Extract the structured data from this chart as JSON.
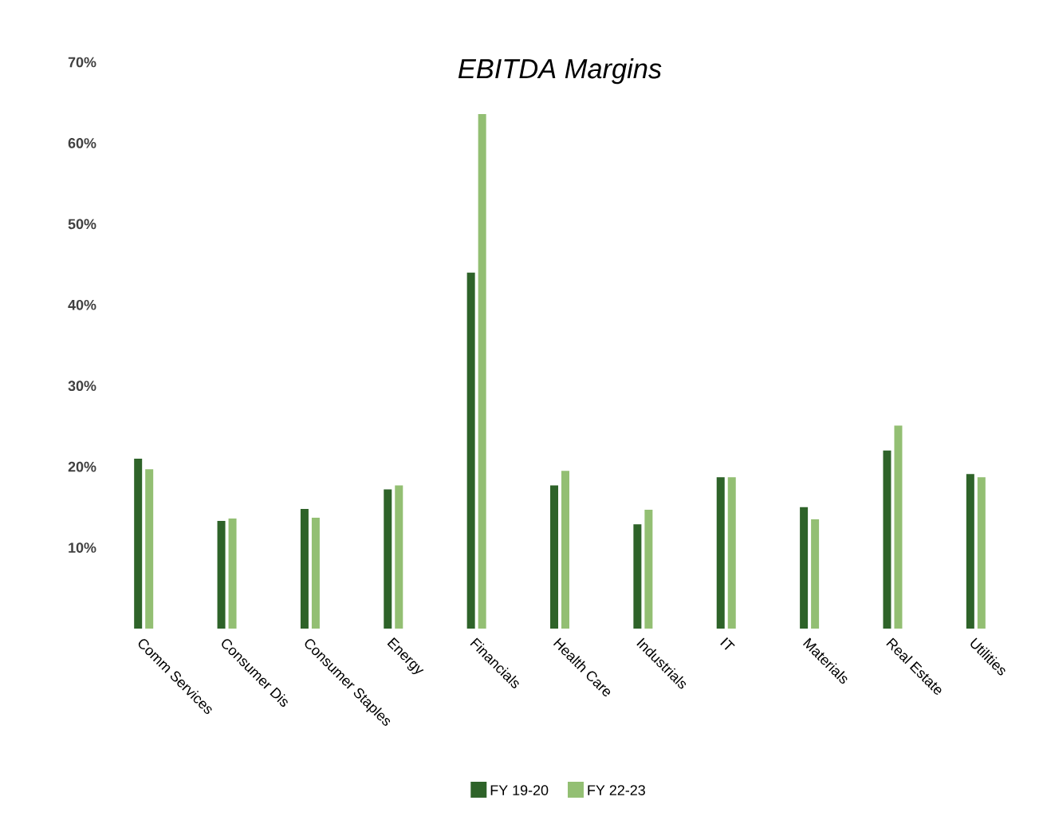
{
  "chart_data": {
    "type": "bar",
    "title": "EBITDA Margins",
    "categories": [
      "Comm Services",
      "Consumer Dis",
      "Consumer Staples",
      "Energy",
      "Financials",
      "Health Care",
      "Industrials",
      "IT",
      "Materials",
      "Real Estate",
      "Utilities"
    ],
    "series": [
      {
        "name": "FY 19-20",
        "color": "#2e6329",
        "values": [
          21.0,
          13.3,
          14.8,
          17.2,
          44.0,
          17.7,
          12.9,
          18.7,
          15.0,
          22.0,
          19.1
        ]
      },
      {
        "name": "FY 22-23",
        "color": "#93bf73",
        "values": [
          19.7,
          13.6,
          13.7,
          17.7,
          63.6,
          19.5,
          14.7,
          18.7,
          13.5,
          25.1,
          18.7
        ]
      }
    ],
    "ylim": [
      0,
      70
    ],
    "yticks": [
      {
        "value": 10,
        "label": "10%"
      },
      {
        "value": 20,
        "label": "20%"
      },
      {
        "value": 30,
        "label": "30%"
      },
      {
        "value": 40,
        "label": "40%"
      },
      {
        "value": 50,
        "label": "50%"
      },
      {
        "value": 60,
        "label": "60%"
      },
      {
        "value": 70,
        "label": "70%"
      }
    ],
    "legend": "bottom",
    "grid": false
  }
}
